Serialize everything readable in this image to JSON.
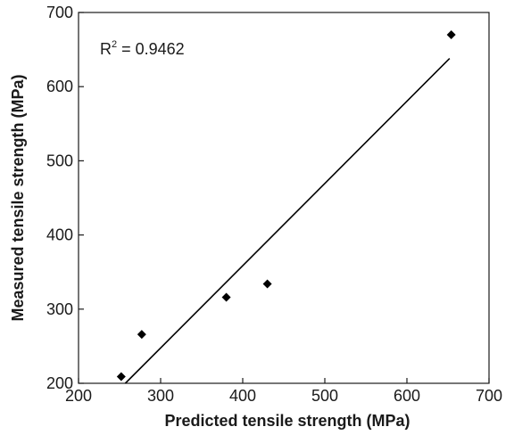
{
  "chart_data": {
    "type": "scatter",
    "xlabel": "Predicted tensile strength (MPa)",
    "ylabel": "Measured tensile strength (MPa)",
    "xlim": [
      200,
      700
    ],
    "ylim": [
      200,
      700
    ],
    "x_ticks": [
      "200",
      "300",
      "400",
      "500",
      "600",
      "700"
    ],
    "y_ticks": [
      "200",
      "300",
      "400",
      "500",
      "600",
      "700"
    ],
    "x_tick_values": [
      200,
      300,
      400,
      500,
      600,
      700
    ],
    "y_tick_values": [
      200,
      300,
      400,
      500,
      600,
      700
    ],
    "points": [
      {
        "x": 252,
        "y": 209
      },
      {
        "x": 277,
        "y": 266
      },
      {
        "x": 380,
        "y": 316
      },
      {
        "x": 430,
        "y": 334
      },
      {
        "x": 654,
        "y": 670
      }
    ],
    "trendline": {
      "x": [
        257,
        652
      ],
      "y": [
        200,
        638
      ]
    },
    "annotation": {
      "prefix": "R",
      "sup": "2",
      "suffix": " = 0.9462"
    },
    "grid": false,
    "marker": "diamond",
    "color": "#000000"
  }
}
